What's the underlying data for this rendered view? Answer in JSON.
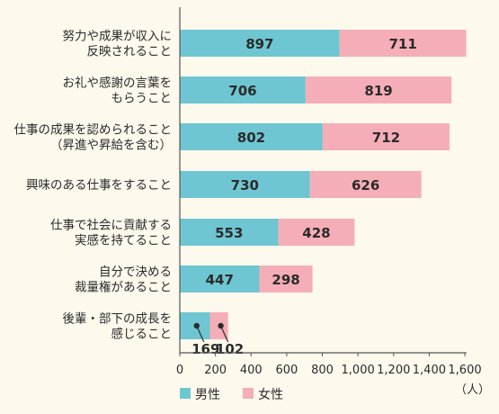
{
  "chart_data": {
    "type": "bar",
    "orientation": "horizontal",
    "stacked": true,
    "categories": [
      [
        "努力や成果が収入に",
        "反映されること"
      ],
      [
        "お礼や感謝の言葉を",
        "もらうこと"
      ],
      [
        "仕事の成果を認められること",
        "（昇進や昇給を含む）"
      ],
      [
        "興味のある仕事をすること"
      ],
      [
        "仕事で社会に貢献する",
        "実感を持てること"
      ],
      [
        "自分で決める",
        "裁量権があること"
      ],
      [
        "後輩・部下の成長を",
        "感じること"
      ]
    ],
    "series": [
      {
        "name": "男性",
        "color": "#6ec6d2",
        "values": [
          897,
          706,
          802,
          730,
          553,
          447,
          169
        ]
      },
      {
        "name": "女性",
        "color": "#f5aeb7",
        "values": [
          711,
          819,
          712,
          626,
          428,
          298,
          102
        ]
      }
    ],
    "xlim": [
      0,
      1600
    ],
    "xticks": [
      0,
      200,
      400,
      600,
      800,
      1000,
      1200,
      1400,
      1600
    ],
    "xtick_labels": [
      "0",
      "200",
      "400",
      "600",
      "800",
      "1,000",
      "1,200",
      "1,400",
      "1,600"
    ],
    "unit": "（人）",
    "legend_position": "bottom-left",
    "grid": false
  }
}
